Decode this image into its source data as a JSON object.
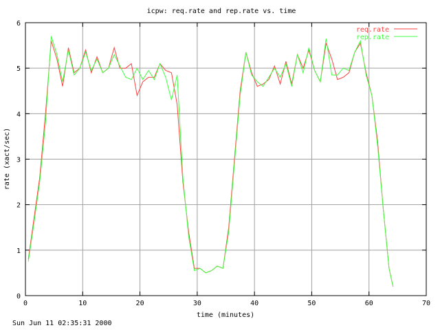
{
  "chart_data": {
    "type": "line",
    "title": "icpw: req.rate and rep.rate vs. time",
    "xlabel": "time (minutes)",
    "ylabel": "rate (xact/sec)",
    "xlim": [
      0,
      70
    ],
    "ylim": [
      0,
      6
    ],
    "xticks": [
      0,
      10,
      20,
      30,
      40,
      50,
      60,
      70
    ],
    "yticks": [
      0,
      1,
      2,
      3,
      4,
      5,
      6
    ],
    "grid": true,
    "legend_position": "top-right",
    "x": [
      0.5,
      1.5,
      2.5,
      3.5,
      4.5,
      5.5,
      6.5,
      7.5,
      8.5,
      9.5,
      10.5,
      11.5,
      12.5,
      13.5,
      14.5,
      15.5,
      16.5,
      17.5,
      18.5,
      19.5,
      20.5,
      21.5,
      22.5,
      23.5,
      24.5,
      25.5,
      26.5,
      27.5,
      28.5,
      29.5,
      30.5,
      31.5,
      32.5,
      33.5,
      34.5,
      35.5,
      36.5,
      37.5,
      38.5,
      39.5,
      40.5,
      41.5,
      42.5,
      43.5,
      44.5,
      45.5,
      46.5,
      47.5,
      48.5,
      49.5,
      50.5,
      51.5,
      52.5,
      53.5,
      54.5,
      55.5,
      56.5,
      57.5,
      58.5,
      59.5,
      60.5,
      61.5,
      62.5,
      63.5,
      64.2
    ],
    "series": [
      {
        "name": "req.rate",
        "color": "#ff4040",
        "values": [
          0.8,
          1.7,
          2.6,
          4.0,
          5.6,
          5.2,
          4.6,
          5.45,
          4.9,
          5.0,
          5.4,
          4.9,
          5.25,
          4.9,
          5.0,
          5.45,
          5.0,
          5.0,
          5.1,
          4.4,
          4.7,
          4.8,
          4.8,
          5.1,
          4.95,
          4.9,
          4.2,
          2.5,
          1.4,
          0.6,
          0.6,
          0.5,
          0.55,
          0.65,
          0.6,
          1.5,
          3.0,
          4.5,
          5.35,
          4.9,
          4.6,
          4.65,
          4.75,
          5.05,
          4.65,
          5.15,
          4.65,
          5.3,
          5.0,
          5.4,
          4.95,
          4.7,
          5.55,
          5.2,
          4.75,
          4.8,
          4.9,
          5.35,
          5.55,
          4.9,
          4.4,
          3.4,
          1.9,
          0.6,
          0.2
        ]
      },
      {
        "name": "rep.rate",
        "color": "#40ff40",
        "values": [
          0.75,
          1.6,
          2.5,
          3.8,
          5.7,
          5.3,
          4.7,
          5.4,
          4.85,
          5.0,
          5.35,
          4.95,
          5.2,
          4.9,
          5.0,
          5.3,
          5.05,
          4.8,
          4.75,
          5.0,
          4.75,
          4.95,
          4.75,
          5.1,
          4.8,
          4.3,
          4.85,
          2.6,
          1.3,
          0.55,
          0.6,
          0.5,
          0.55,
          0.65,
          0.6,
          1.4,
          2.9,
          4.4,
          5.35,
          4.85,
          4.7,
          4.6,
          4.8,
          5.0,
          4.8,
          5.1,
          4.6,
          5.3,
          4.9,
          5.45,
          4.95,
          4.7,
          5.65,
          4.85,
          4.85,
          5.0,
          4.95,
          5.35,
          5.6,
          4.85,
          4.4,
          3.3,
          1.9,
          0.6,
          0.2
        ]
      }
    ]
  },
  "timestamp": "Sun Jun 11 02:35:31 2000"
}
